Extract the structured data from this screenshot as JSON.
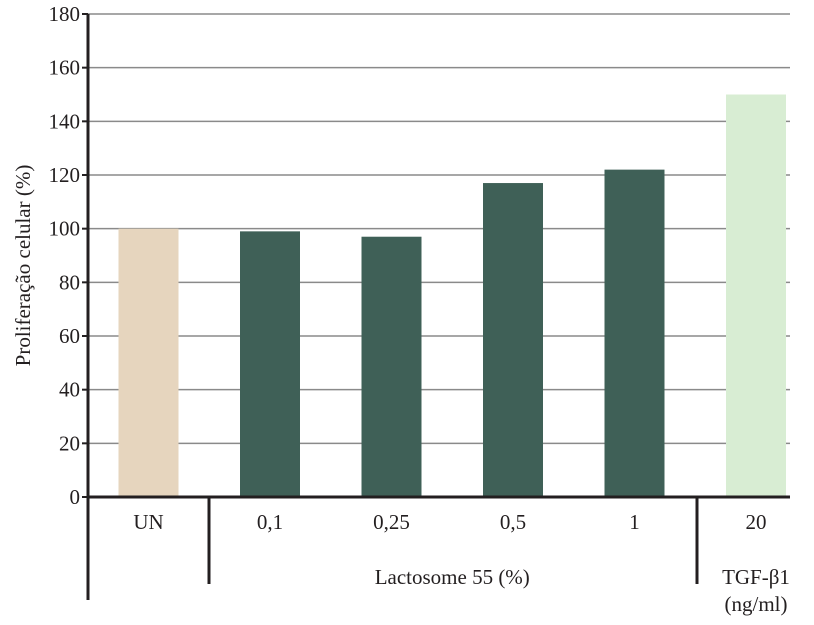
{
  "chart_data": {
    "type": "bar",
    "title": "",
    "xlabel": "",
    "ylabel": "Proliferação celular (%)",
    "ylim": [
      0,
      180
    ],
    "yticks": [
      0,
      20,
      40,
      60,
      80,
      100,
      120,
      140,
      160,
      180
    ],
    "grid": true,
    "categories": [
      "UN",
      "0,1",
      "0,25",
      "0,5",
      "1",
      "20"
    ],
    "values": [
      100,
      99,
      97,
      117,
      122,
      150
    ],
    "bar_colors": [
      "#e6d5be",
      "#3f6057",
      "#3f6057",
      "#3f6057",
      "#3f6057",
      "#d8edd3"
    ],
    "groups": [
      {
        "label": "",
        "categories": [
          "UN"
        ]
      },
      {
        "label": "Lactosome 55 (%)",
        "categories": [
          "0,1",
          "0,25",
          "0,5",
          "1"
        ]
      },
      {
        "label": "TGF-β1",
        "label_line2": "(ng/ml)",
        "categories": [
          "20"
        ]
      }
    ]
  },
  "colors": {
    "axis": "#231f20",
    "grid": "#8a8a8a",
    "text": "#231f20"
  }
}
